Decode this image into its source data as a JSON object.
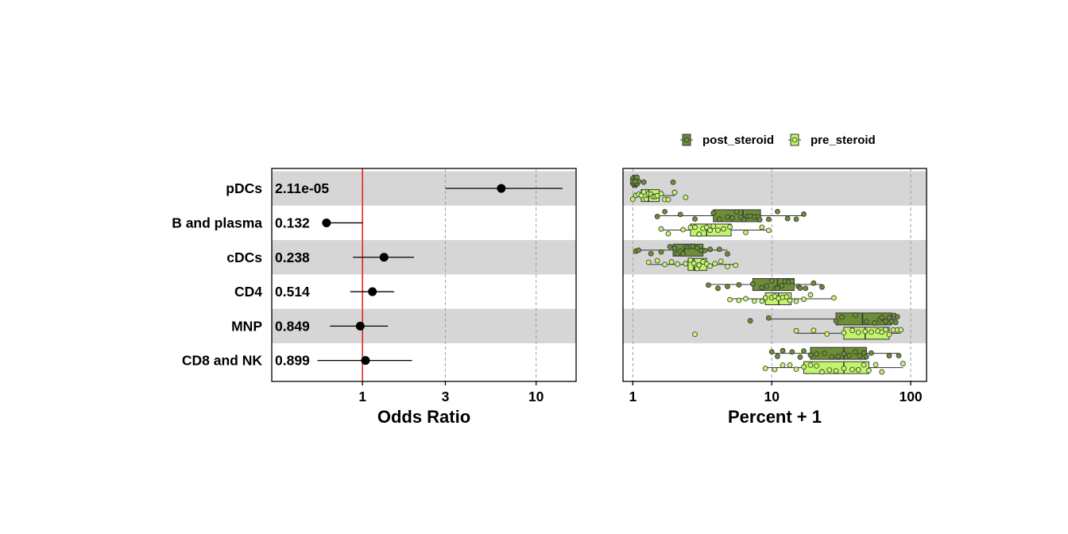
{
  "chart_data": [
    {
      "type": "forest",
      "xlabel": "Odds Ratio",
      "x_scale": "log",
      "xlim": [
        0.3,
        17
      ],
      "xticks": [
        "1",
        "3",
        "10"
      ],
      "reference_line": 1,
      "reference_color": "#e41a1c",
      "grid": "vertical dashed",
      "rows": [
        {
          "label": "pDCs",
          "p": "2.11e-05",
          "or": 6.3,
          "lo": 3.0,
          "hi": 14.2
        },
        {
          "label": "B and plasma",
          "p": "0.132",
          "or": 0.62,
          "lo": 0.62,
          "hi": 1.0
        },
        {
          "label": "cDCs",
          "p": "0.238",
          "or": 1.33,
          "lo": 0.88,
          "hi": 1.98
        },
        {
          "label": "CD4",
          "p": "0.514",
          "or": 1.14,
          "lo": 0.85,
          "hi": 1.52
        },
        {
          "label": "MNP",
          "p": "0.849",
          "or": 0.97,
          "lo": 0.65,
          "hi": 1.4
        },
        {
          "label": "CD8 and NK",
          "p": "0.899",
          "or": 1.04,
          "lo": 0.55,
          "hi": 1.93
        }
      ]
    },
    {
      "type": "boxplot",
      "orientation": "horizontal",
      "xlabel": "Percent + 1",
      "x_scale": "log",
      "xlim": [
        0.85,
        130
      ],
      "xticks": [
        "1",
        "10",
        "100"
      ],
      "grid": "vertical dashed",
      "legend_position": "top",
      "series": [
        {
          "name": "post_steroid",
          "color": "#6b8e37"
        },
        {
          "name": "pre_steroid",
          "color": "#c2f56b"
        }
      ],
      "groups": [
        {
          "label": "pDCs",
          "post_steroid": {
            "min": 1.0,
            "q1": 1.0,
            "median": 1.0,
            "q3": 1.07,
            "max": 1.1,
            "points": [
              1.0,
              1.0,
              1.02,
              1.03,
              1.05,
              1.06,
              1.08,
              1.1,
              1.0,
              1.04,
              1.07,
              1.2,
              1.95
            ]
          },
          "pre_steroid": {
            "min": 1.0,
            "q1": 1.15,
            "median": 1.3,
            "q3": 1.55,
            "max": 2.0,
            "points": [
              1.0,
              1.05,
              1.1,
              1.15,
              1.2,
              1.25,
              1.3,
              1.35,
              1.4,
              1.45,
              1.5,
              1.6,
              1.7,
              1.8,
              2.0,
              2.4
            ]
          }
        },
        {
          "label": "B and plasma",
          "post_steroid": {
            "min": 1.5,
            "q1": 3.8,
            "median": 6.2,
            "q3": 8.3,
            "max": 17.0,
            "points": [
              1.5,
              1.7,
              2.2,
              2.8,
              3.8,
              4.2,
              4.8,
              5.2,
              5.6,
              6.0,
              6.3,
              6.7,
              7.0,
              7.5,
              8.0,
              8.2,
              9.5,
              11.0,
              13.0,
              15.0,
              17.0
            ]
          },
          "pre_steroid": {
            "min": 1.6,
            "q1": 2.6,
            "median": 3.4,
            "q3": 5.1,
            "max": 9.6,
            "points": [
              1.6,
              1.8,
              2.3,
              2.6,
              2.8,
              3.0,
              3.2,
              3.4,
              3.6,
              3.8,
              4.1,
              4.5,
              5.0,
              6.5,
              8.5,
              9.5
            ]
          }
        },
        {
          "label": "cDCs",
          "post_steroid": {
            "min": 1.05,
            "q1": 1.95,
            "median": 2.35,
            "q3": 3.2,
            "max": 4.8,
            "points": [
              1.05,
              1.1,
              1.35,
              1.6,
              1.85,
              2.0,
              2.1,
              2.2,
              2.3,
              2.4,
              2.5,
              2.6,
              2.7,
              2.9,
              3.1,
              3.3,
              3.6,
              4.2,
              4.8
            ]
          },
          "pre_steroid": {
            "min": 1.3,
            "q1": 2.5,
            "median": 2.75,
            "q3": 3.4,
            "max": 5.5,
            "points": [
              1.3,
              1.5,
              1.7,
              1.9,
              2.1,
              2.4,
              2.6,
              2.75,
              2.9,
              3.0,
              3.2,
              3.4,
              3.6,
              3.9,
              4.3,
              4.8,
              5.5
            ]
          }
        },
        {
          "label": "CD4",
          "post_steroid": {
            "min": 3.5,
            "q1": 7.3,
            "median": 11.0,
            "q3": 14.5,
            "max": 23.0,
            "points": [
              3.5,
              4.1,
              4.8,
              5.8,
              7.3,
              8.5,
              9.2,
              10.0,
              10.6,
              11.0,
              11.8,
              12.5,
              13.2,
              14.0,
              15.5,
              16.0,
              17.5,
              20.0,
              23.0
            ]
          },
          "pre_steroid": {
            "min": 5.0,
            "q1": 9.0,
            "median": 11.2,
            "q3": 13.8,
            "max": 28.0,
            "points": [
              5.0,
              5.8,
              6.5,
              7.5,
              8.5,
              9.0,
              10.0,
              10.5,
              11.2,
              12.0,
              12.8,
              13.5,
              15.0,
              17.0,
              19.0,
              28.0
            ]
          }
        },
        {
          "label": "MNP",
          "post_steroid": {
            "min": 9.5,
            "q1": 29.0,
            "median": 45.0,
            "q3": 73.0,
            "max": 80.0,
            "points": [
              7.0,
              9.5,
              29.0,
              32.0,
              40.0,
              48.0,
              55.0,
              60.0,
              62.0,
              66.0,
              70.0,
              73.0,
              76.0,
              78.0,
              80.0
            ]
          },
          "pre_steroid": {
            "min": 15.0,
            "q1": 33.0,
            "median": 47.0,
            "q3": 70.0,
            "max": 85.0,
            "points": [
              2.8,
              15.0,
              20.0,
              25.0,
              33.0,
              38.0,
              42.0,
              47.0,
              52.0,
              58.0,
              62.0,
              66.0,
              70.0,
              75.0,
              80.0,
              85.0
            ]
          }
        },
        {
          "label": "CD8 and NK",
          "post_steroid": {
            "min": 10.0,
            "q1": 19.0,
            "median": 33.0,
            "q3": 48.0,
            "max": 82.0,
            "points": [
              10.0,
              11.0,
              12.0,
              14.0,
              16.0,
              17.0,
              19.0,
              21.0,
              24.0,
              27.0,
              30.0,
              33.0,
              36.0,
              40.0,
              43.0,
              46.0,
              48.0,
              52.0,
              70.0,
              82.0
            ]
          },
          "pre_steroid": {
            "min": 9.0,
            "q1": 17.0,
            "median": 33.0,
            "q3": 50.0,
            "max": 88.0,
            "points": [
              9.0,
              10.5,
              12.0,
              13.5,
              15.0,
              17.0,
              19.0,
              21.0,
              23.0,
              26.0,
              29.0,
              33.0,
              38.0,
              42.0,
              46.0,
              50.0,
              56.0,
              62.0,
              88.0
            ]
          }
        }
      ]
    }
  ]
}
